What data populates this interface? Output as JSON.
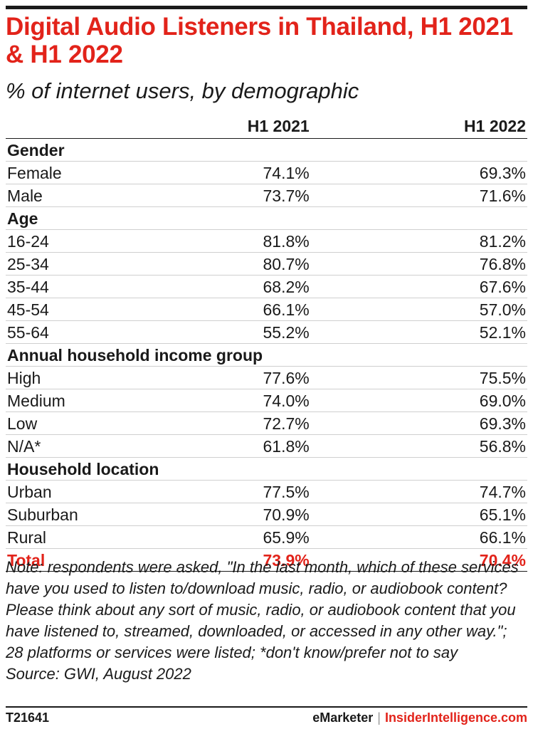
{
  "title": "Digital Audio Listeners in Thailand, H1 2021 & H1 2022",
  "subtitle": "% of internet users, by demographic",
  "chart_data": {
    "type": "table",
    "columns": [
      "H1 2021",
      "H1 2022"
    ],
    "groups": [
      {
        "name": "Gender",
        "rows": [
          {
            "label": "Female",
            "values": [
              "74.1%",
              "69.3%"
            ]
          },
          {
            "label": "Male",
            "values": [
              "73.7%",
              "71.6%"
            ]
          }
        ]
      },
      {
        "name": "Age",
        "rows": [
          {
            "label": "16-24",
            "values": [
              "81.8%",
              "81.2%"
            ]
          },
          {
            "label": "25-34",
            "values": [
              "80.7%",
              "76.8%"
            ]
          },
          {
            "label": "35-44",
            "values": [
              "68.2%",
              "67.6%"
            ]
          },
          {
            "label": "45-54",
            "values": [
              "66.1%",
              "57.0%"
            ]
          },
          {
            "label": "55-64",
            "values": [
              "55.2%",
              "52.1%"
            ]
          }
        ]
      },
      {
        "name": "Annual household income group",
        "rows": [
          {
            "label": "High",
            "values": [
              "77.6%",
              "75.5%"
            ]
          },
          {
            "label": "Medium",
            "values": [
              "74.0%",
              "69.0%"
            ]
          },
          {
            "label": "Low",
            "values": [
              "72.7%",
              "69.3%"
            ]
          },
          {
            "label": "N/A*",
            "values": [
              "61.8%",
              "56.8%"
            ]
          }
        ]
      },
      {
        "name": "Household location",
        "rows": [
          {
            "label": "Urban",
            "values": [
              "77.5%",
              "74.7%"
            ]
          },
          {
            "label": "Suburban",
            "values": [
              "70.9%",
              "65.1%"
            ]
          },
          {
            "label": "Rural",
            "values": [
              "65.9%",
              "66.1%"
            ]
          }
        ]
      }
    ],
    "total": {
      "label": "Total",
      "values": [
        "73.9%",
        "70.4%"
      ]
    }
  },
  "note": "Note: respondents were asked, \"In the last month, which of these services have you used to listen to/download music, radio, or audiobook content? Please think about any sort of music, radio, or audiobook content that you have listened to, streamed, downloaded, or accessed in any other way.\"; 28 platforms or services were listed; *don't know/prefer not to say",
  "source": "Source: GWI, August 2022",
  "footer": {
    "chart_id": "T21641",
    "brand1": "eMarketer",
    "separator": "|",
    "brand2": "InsiderIntelligence.com"
  },
  "colors": {
    "accent": "#e2231a",
    "text": "#1a1a1a"
  }
}
